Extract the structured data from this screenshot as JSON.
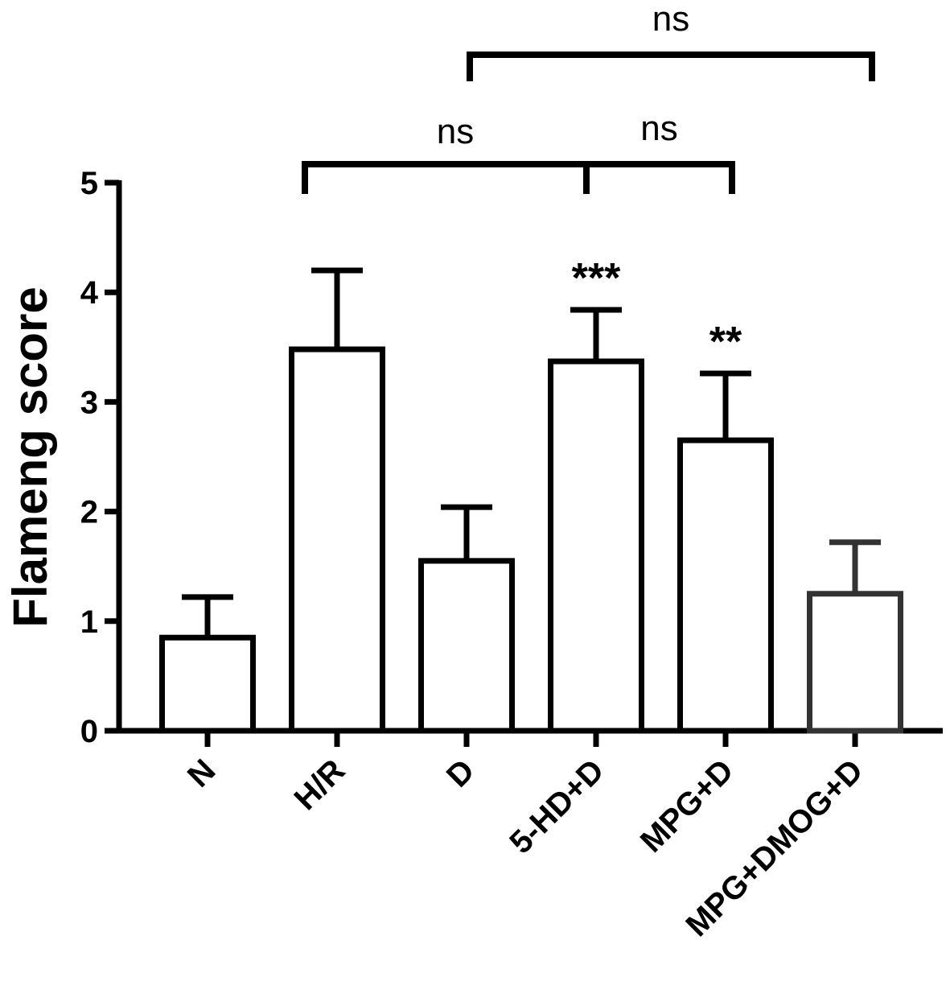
{
  "chart_data": {
    "type": "bar",
    "title": "",
    "xlabel": "",
    "ylabel": "Flameng score",
    "ylim": [
      0,
      5
    ],
    "yticks": [
      0,
      1,
      2,
      3,
      4,
      5
    ],
    "categories": [
      "N",
      "H/R",
      "D",
      "5-HD+D",
      "MPG+D",
      "MPG+DMOG+D"
    ],
    "values": [
      0.85,
      3.48,
      1.55,
      3.37,
      2.65,
      1.25
    ],
    "errors": [
      0.37,
      0.72,
      0.49,
      0.47,
      0.61,
      0.47
    ],
    "bar_colors": [
      "#000000",
      "#000000",
      "#000000",
      "#000000",
      "#000000",
      "#333333"
    ],
    "significance": [
      "",
      "",
      "",
      "***",
      "**",
      ""
    ],
    "comparisons": [
      {
        "label": "ns",
        "from": 1,
        "to": 3
      },
      {
        "label": "ns",
        "from": 3,
        "to": 4
      },
      {
        "label": "ns",
        "from": 2,
        "to": 5
      }
    ],
    "grid": false,
    "legend": "none"
  }
}
